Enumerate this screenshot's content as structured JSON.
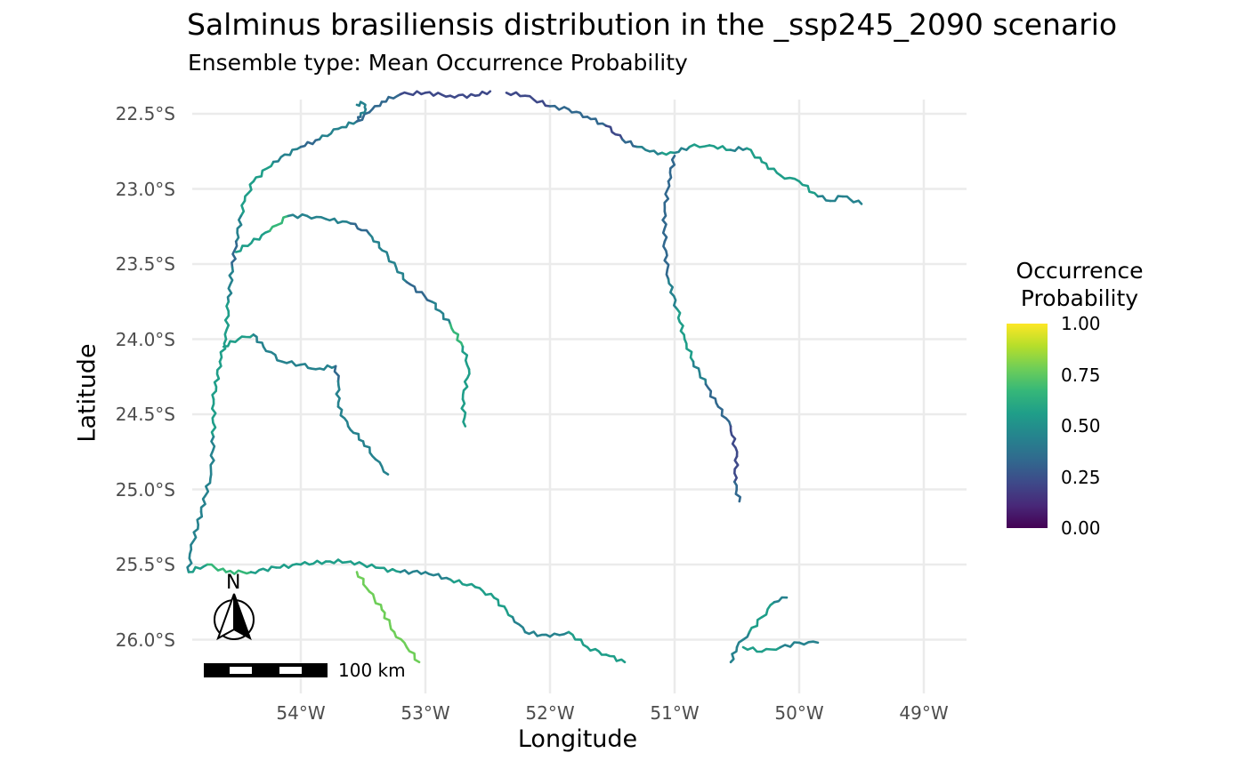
{
  "title": "Salminus brasiliensis distribution in the _ssp245_2090 scenario",
  "subtitle": "Ensemble type: Mean Occurrence Probability",
  "x_axis": {
    "label": "Longitude",
    "range": [
      -54.9,
      -48.6
    ],
    "ticks": [
      {
        "value": -54,
        "label": "54°W"
      },
      {
        "value": -53,
        "label": "53°W"
      },
      {
        "value": -52,
        "label": "52°W"
      },
      {
        "value": -51,
        "label": "51°W"
      },
      {
        "value": -50,
        "label": "50°W"
      },
      {
        "value": -49,
        "label": "49°W"
      }
    ]
  },
  "y_axis": {
    "label": "Latitude",
    "range": [
      -26.35,
      -22.4
    ],
    "ticks": [
      {
        "value": -22.5,
        "label": "22.5°S"
      },
      {
        "value": -23.0,
        "label": "23.0°S"
      },
      {
        "value": -23.5,
        "label": "23.5°S"
      },
      {
        "value": -24.0,
        "label": "24.0°S"
      },
      {
        "value": -24.5,
        "label": "24.5°S"
      },
      {
        "value": -25.0,
        "label": "25.0°S"
      },
      {
        "value": -25.5,
        "label": "25.5°S"
      },
      {
        "value": -26.0,
        "label": "26.0°S"
      }
    ]
  },
  "legend": {
    "title_line1": "Occurrence",
    "title_line2": "Probability",
    "placement": "right",
    "ticks": [
      {
        "value": 1.0,
        "label": "1.00"
      },
      {
        "value": 0.75,
        "label": "0.75"
      },
      {
        "value": 0.5,
        "label": "0.50"
      },
      {
        "value": 0.25,
        "label": "0.25"
      },
      {
        "value": 0.0,
        "label": "0.00"
      }
    ],
    "colors": [
      "#440154",
      "#482878",
      "#3e4989",
      "#31688e",
      "#26828e",
      "#1f9e89",
      "#35b779",
      "#6ece58",
      "#b5de2b",
      "#fde725"
    ]
  },
  "north_arrow": {
    "label": "N"
  },
  "scale_bar": {
    "label": "100 km"
  },
  "grid": true,
  "rivers": [
    {
      "name": "",
      "points": [
        [
          -54.48,
          -23.18
        ],
        [
          -54.45,
          -23.08
        ],
        [
          -54.38,
          -22.95
        ],
        [
          -54.22,
          -22.82
        ],
        [
          -54.0,
          -22.72
        ],
        [
          -53.85,
          -22.67
        ],
        [
          -53.7,
          -22.6
        ],
        [
          -53.55,
          -22.55
        ],
        [
          -53.45,
          -22.49
        ],
        [
          -53.35,
          -22.42
        ]
      ],
      "values": [
        0.45,
        0.55,
        0.6,
        0.45,
        0.35,
        0.3,
        0.5,
        0.4,
        0.3,
        0.35
      ]
    },
    {
      "name": "",
      "points": [
        [
          -53.55,
          -22.44
        ],
        [
          -53.5,
          -22.43
        ],
        [
          -53.48,
          -22.47
        ],
        [
          -53.52,
          -22.52
        ],
        [
          -53.55,
          -22.55
        ]
      ],
      "values": [
        0.4,
        0.5,
        0.45,
        0.35,
        0.4
      ]
    },
    {
      "name": "",
      "points": [
        [
          -53.35,
          -22.42
        ],
        [
          -53.2,
          -22.37
        ],
        [
          -53.0,
          -22.36
        ],
        [
          -52.8,
          -22.38
        ],
        [
          -52.6,
          -22.38
        ],
        [
          -52.48,
          -22.35
        ]
      ],
      "values": [
        0.3,
        0.3,
        0.25,
        0.3,
        0.25,
        0.3
      ]
    },
    {
      "name": "",
      "points": [
        [
          -52.35,
          -22.36
        ],
        [
          -52.2,
          -22.38
        ],
        [
          -52.0,
          -22.45
        ],
        [
          -51.85,
          -22.47
        ],
        [
          -51.7,
          -22.52
        ],
        [
          -51.55,
          -22.58
        ],
        [
          -51.42,
          -22.67
        ]
      ],
      "values": [
        0.3,
        0.25,
        0.3,
        0.35,
        0.3,
        0.3,
        0.25
      ]
    },
    {
      "name": "",
      "points": [
        [
          -51.42,
          -22.67
        ],
        [
          -51.3,
          -22.72
        ],
        [
          -51.2,
          -22.75
        ],
        [
          -51.1,
          -22.76
        ],
        [
          -51.0,
          -22.76
        ],
        [
          -50.88,
          -22.72
        ],
        [
          -50.72,
          -22.71
        ],
        [
          -50.55,
          -22.74
        ]
      ],
      "values": [
        0.25,
        0.5,
        0.4,
        0.55,
        0.45,
        0.4,
        0.6,
        0.45
      ]
    },
    {
      "name": "",
      "points": [
        [
          -50.55,
          -22.74
        ],
        [
          -50.42,
          -22.73
        ],
        [
          -50.3,
          -22.82
        ],
        [
          -50.15,
          -22.91
        ],
        [
          -50.0,
          -22.95
        ],
        [
          -49.85,
          -23.05
        ],
        [
          -49.75,
          -23.08
        ]
      ],
      "values": [
        0.45,
        0.5,
        0.6,
        0.45,
        0.55,
        0.5,
        0.45
      ]
    },
    {
      "name": "",
      "points": [
        [
          -49.75,
          -23.08
        ],
        [
          -49.65,
          -23.05
        ],
        [
          -49.5,
          -23.1
        ]
      ],
      "values": [
        0.45,
        0.5,
        0.3
      ]
    },
    {
      "name": "",
      "points": [
        [
          -54.48,
          -23.18
        ],
        [
          -54.52,
          -23.35
        ],
        [
          -54.55,
          -23.52
        ],
        [
          -54.58,
          -23.75
        ],
        [
          -54.6,
          -24.0
        ],
        [
          -54.65,
          -24.15
        ],
        [
          -54.7,
          -24.4
        ],
        [
          -54.7,
          -24.65
        ],
        [
          -54.72,
          -24.9
        ],
        [
          -54.8,
          -25.15
        ],
        [
          -54.88,
          -25.4
        ],
        [
          -54.9,
          -25.55
        ]
      ],
      "values": [
        0.45,
        0.4,
        0.35,
        0.45,
        0.6,
        0.5,
        0.55,
        0.5,
        0.45,
        0.5,
        0.45,
        0.5
      ]
    },
    {
      "name": "",
      "points": [
        [
          -54.52,
          -23.42
        ],
        [
          -54.25,
          -23.28
        ],
        [
          -54.1,
          -23.18
        ],
        [
          -53.95,
          -23.18
        ],
        [
          -53.8,
          -23.2
        ],
        [
          -53.6,
          -23.23
        ],
        [
          -53.45,
          -23.3
        ],
        [
          -53.3,
          -23.45
        ],
        [
          -53.15,
          -23.62
        ],
        [
          -52.95,
          -23.75
        ],
        [
          -52.8,
          -23.9
        ],
        [
          -52.7,
          -24.05
        ],
        [
          -52.65,
          -24.2
        ],
        [
          -52.7,
          -24.4
        ],
        [
          -52.68,
          -24.58
        ]
      ],
      "values": [
        0.55,
        0.65,
        0.6,
        0.35,
        0.5,
        0.3,
        0.35,
        0.45,
        0.4,
        0.35,
        0.5,
        0.75,
        0.45,
        0.55,
        0.5
      ]
    },
    {
      "name": "",
      "points": [
        [
          -54.62,
          -24.05
        ],
        [
          -54.5,
          -24.0
        ],
        [
          -54.38,
          -23.97
        ],
        [
          -54.3,
          -24.05
        ],
        [
          -54.15,
          -24.15
        ],
        [
          -54.0,
          -24.17
        ],
        [
          -53.88,
          -24.2
        ],
        [
          -53.72,
          -24.18
        ],
        [
          -53.7,
          -24.28
        ],
        [
          -53.7,
          -24.45
        ],
        [
          -53.62,
          -24.58
        ],
        [
          -53.5,
          -24.68
        ],
        [
          -53.4,
          -24.8
        ],
        [
          -53.3,
          -24.9
        ]
      ],
      "values": [
        0.55,
        0.6,
        0.5,
        0.4,
        0.45,
        0.35,
        0.45,
        0.4,
        0.35,
        0.45,
        0.5,
        0.45,
        0.4,
        0.45
      ]
    },
    {
      "name": "",
      "points": [
        [
          -51.0,
          -22.78
        ],
        [
          -51.05,
          -22.95
        ],
        [
          -51.08,
          -23.15
        ],
        [
          -51.08,
          -23.35
        ],
        [
          -51.05,
          -23.6
        ],
        [
          -50.98,
          -23.8
        ],
        [
          -50.92,
          -24.0
        ],
        [
          -50.85,
          -24.15
        ],
        [
          -50.75,
          -24.3
        ],
        [
          -50.65,
          -24.45
        ],
        [
          -50.55,
          -24.58
        ],
        [
          -50.5,
          -24.78
        ],
        [
          -50.52,
          -24.95
        ],
        [
          -50.48,
          -25.08
        ]
      ],
      "values": [
        0.3,
        0.3,
        0.35,
        0.3,
        0.35,
        0.45,
        0.6,
        0.5,
        0.4,
        0.35,
        0.3,
        0.25,
        0.3,
        0.35
      ]
    },
    {
      "name": "",
      "points": [
        [
          -54.9,
          -25.55
        ],
        [
          -54.75,
          -25.5
        ],
        [
          -54.6,
          -25.55
        ],
        [
          -54.4,
          -25.55
        ],
        [
          -54.2,
          -25.52
        ],
        [
          -54.0,
          -25.5
        ],
        [
          -53.8,
          -25.48
        ],
        [
          -53.6,
          -25.48
        ],
        [
          -53.4,
          -25.52
        ],
        [
          -53.2,
          -25.55
        ],
        [
          -53.0,
          -25.55
        ],
        [
          -52.8,
          -25.6
        ],
        [
          -52.6,
          -25.65
        ],
        [
          -52.45,
          -25.72
        ],
        [
          -52.3,
          -25.85
        ],
        [
          -52.2,
          -25.95
        ],
        [
          -52.0,
          -25.98
        ],
        [
          -51.85,
          -25.95
        ],
        [
          -51.7,
          -26.05
        ],
        [
          -51.55,
          -26.1
        ],
        [
          -51.4,
          -26.15
        ]
      ],
      "values": [
        0.55,
        0.6,
        0.7,
        0.6,
        0.55,
        0.65,
        0.5,
        0.6,
        0.55,
        0.5,
        0.45,
        0.5,
        0.65,
        0.55,
        0.5,
        0.4,
        0.45,
        0.5,
        0.6,
        0.55,
        0.5
      ]
    },
    {
      "name": "",
      "points": [
        [
          -53.55,
          -25.55
        ],
        [
          -53.45,
          -25.68
        ],
        [
          -53.35,
          -25.8
        ],
        [
          -53.25,
          -25.95
        ],
        [
          -53.15,
          -26.05
        ],
        [
          -53.05,
          -26.15
        ]
      ],
      "values": [
        0.75,
        0.8,
        0.7,
        0.85,
        0.8,
        0.75
      ]
    },
    {
      "name": "",
      "points": [
        [
          -50.55,
          -26.15
        ],
        [
          -50.5,
          -26.05
        ],
        [
          -50.4,
          -25.95
        ],
        [
          -50.3,
          -25.85
        ],
        [
          -50.2,
          -25.75
        ],
        [
          -50.1,
          -25.72
        ]
      ],
      "values": [
        0.4,
        0.5,
        0.45,
        0.55,
        0.5,
        0.45
      ]
    },
    {
      "name": "",
      "points": [
        [
          -50.45,
          -26.05
        ],
        [
          -50.3,
          -26.08
        ],
        [
          -50.15,
          -26.05
        ],
        [
          -50.0,
          -26.02
        ],
        [
          -49.85,
          -26.02
        ]
      ],
      "values": [
        0.5,
        0.55,
        0.45,
        0.5,
        0.45
      ]
    }
  ]
}
